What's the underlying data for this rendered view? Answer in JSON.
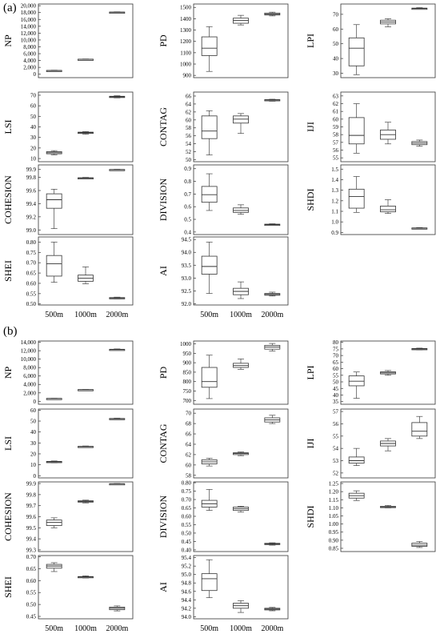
{
  "xcats": [
    "500m",
    "1000m",
    "2000m"
  ],
  "panels": [
    {
      "label": "(a)",
      "charts": [
        {
          "ylabel": "NP",
          "ticks": [
            "0",
            "2,000",
            "4,000",
            "6,000",
            "8,000",
            "10,000",
            "12,000",
            "14,000",
            "16,000",
            "18,000",
            "20,000"
          ],
          "ylim": [
            -1000,
            20500
          ],
          "boxes": [
            {
              "min": 950,
              "q1": 1000,
              "med": 1050,
              "q3": 1120,
              "max": 1180
            },
            {
              "min": 4280,
              "q1": 4330,
              "med": 4360,
              "q3": 4400,
              "max": 4450
            },
            {
              "min": 17950,
              "q1": 18050,
              "med": 18100,
              "q3": 18160,
              "max": 18220
            }
          ]
        },
        {
          "ylabel": "PD",
          "ticks": [
            "900",
            "1000",
            "1100",
            "1200",
            "1300",
            "1400",
            "1500"
          ],
          "ylim": [
            880,
            1530
          ],
          "boxes": [
            {
              "min": 935,
              "q1": 1075,
              "med": 1140,
              "q3": 1240,
              "max": 1330
            },
            {
              "min": 1345,
              "q1": 1360,
              "med": 1385,
              "q3": 1405,
              "max": 1430
            },
            {
              "min": 1425,
              "q1": 1433,
              "med": 1440,
              "q3": 1450,
              "max": 1458
            }
          ]
        },
        {
          "ylabel": "LPI",
          "ticks": [
            "30",
            "40",
            "50",
            "60",
            "70"
          ],
          "ylim": [
            27,
            77
          ],
          "boxes": [
            {
              "min": 29,
              "q1": 35,
              "med": 47,
              "q3": 54,
              "max": 63
            },
            {
              "min": 61.5,
              "q1": 63.5,
              "med": 64.8,
              "q3": 66,
              "max": 67
            },
            {
              "min": 73.5,
              "q1": 73.8,
              "med": 74,
              "q3": 74.2,
              "max": 74.5
            }
          ]
        },
        {
          "ylabel": "LSI",
          "ticks": [
            "10",
            "20",
            "30",
            "40",
            "50",
            "60",
            "70"
          ],
          "ylim": [
            7,
            73
          ],
          "boxes": [
            {
              "min": 13.5,
              "q1": 14.5,
              "med": 15.5,
              "q3": 16.5,
              "max": 17.5
            },
            {
              "min": 33,
              "q1": 33.8,
              "med": 34.5,
              "q3": 35,
              "max": 35.5
            },
            {
              "min": 67.5,
              "q1": 68,
              "med": 68.5,
              "q3": 69,
              "max": 69.5
            }
          ]
        },
        {
          "ylabel": "CONTAG",
          "ticks": [
            "50",
            "52",
            "54",
            "56",
            "58",
            "60",
            "62",
            "64",
            "66"
          ],
          "ylim": [
            49.5,
            67
          ],
          "boxes": [
            {
              "min": 51.2,
              "q1": 55.3,
              "med": 57.2,
              "q3": 61,
              "max": 62.3
            },
            {
              "min": 56.6,
              "q1": 59.2,
              "med": 60.2,
              "q3": 61,
              "max": 61.6
            },
            {
              "min": 64.7,
              "q1": 64.9,
              "med": 65,
              "q3": 65.1,
              "max": 65.2
            }
          ]
        },
        {
          "ylabel": "IJI",
          "ticks": [
            "55",
            "56",
            "57",
            "58",
            "59",
            "60",
            "61",
            "62",
            "63"
          ],
          "ylim": [
            54.5,
            63.5
          ],
          "boxes": [
            {
              "min": 55.6,
              "q1": 56.8,
              "med": 57.9,
              "q3": 60.2,
              "max": 62
            },
            {
              "min": 56.8,
              "q1": 57.4,
              "med": 58,
              "q3": 58.6,
              "max": 59.6
            },
            {
              "min": 56.5,
              "q1": 56.7,
              "med": 56.9,
              "q3": 57.1,
              "max": 57.3
            }
          ]
        },
        {
          "ylabel": "COHESION",
          "ticks": [
            "99.0",
            "99.2",
            "99.4",
            "99.6",
            "99.8",
            "99.9"
          ],
          "yvals": [
            99.0,
            99.2,
            99.4,
            99.6,
            99.8,
            99.92
          ],
          "ylim": [
            98.93,
            99.99
          ],
          "boxes": [
            {
              "min": 99.02,
              "q1": 99.33,
              "med": 99.46,
              "q3": 99.55,
              "max": 99.62
            },
            {
              "min": 99.775,
              "q1": 99.783,
              "med": 99.79,
              "q3": 99.795,
              "max": 99.8
            },
            {
              "min": 99.912,
              "q1": 99.915,
              "med": 99.918,
              "q3": 99.921,
              "max": 99.924
            }
          ]
        },
        {
          "ylabel": "DIVISION",
          "ticks": [
            "0.4",
            "0.5",
            "0.6",
            "0.7",
            "0.8",
            "0.9"
          ],
          "ylim": [
            0.38,
            0.93
          ],
          "boxes": [
            {
              "min": 0.57,
              "q1": 0.635,
              "med": 0.695,
              "q3": 0.76,
              "max": 0.86
            },
            {
              "min": 0.54,
              "q1": 0.555,
              "med": 0.57,
              "q3": 0.59,
              "max": 0.615
            },
            {
              "min": 0.452,
              "q1": 0.456,
              "med": 0.459,
              "q3": 0.462,
              "max": 0.465
            }
          ]
        },
        {
          "ylabel": "SHDI",
          "ticks": [
            "0.9",
            "1.0",
            "1.1",
            "1.2",
            "1.3",
            "1.4",
            "1.5"
          ],
          "ylim": [
            0.88,
            1.54
          ],
          "boxes": [
            {
              "min": 1.09,
              "q1": 1.13,
              "med": 1.24,
              "q3": 1.31,
              "max": 1.43
            },
            {
              "min": 1.08,
              "q1": 1.095,
              "med": 1.115,
              "q3": 1.15,
              "max": 1.21
            },
            {
              "min": 0.935,
              "q1": 0.938,
              "med": 0.94,
              "q3": 0.943,
              "max": 0.946
            }
          ]
        },
        {
          "ylabel": "SHEI",
          "ticks": [
            "0.50",
            "0.55",
            "0.60",
            "0.65",
            "0.70",
            "0.75",
            "0.80"
          ],
          "ylim": [
            0.495,
            0.825
          ],
          "boxes": [
            {
              "min": 0.605,
              "q1": 0.635,
              "med": 0.695,
              "q3": 0.735,
              "max": 0.8
            },
            {
              "min": 0.598,
              "q1": 0.61,
              "med": 0.625,
              "q3": 0.64,
              "max": 0.68
            },
            {
              "min": 0.525,
              "q1": 0.527,
              "med": 0.529,
              "q3": 0.531,
              "max": 0.533
            }
          ]
        },
        {
          "ylabel": "AI",
          "ticks": [
            "92.0",
            "92.5",
            "93.0",
            "93.5",
            "94.0",
            "94.5"
          ],
          "ylim": [
            91.95,
            94.6
          ],
          "boxes": [
            {
              "min": 92.4,
              "q1": 93.15,
              "med": 93.45,
              "q3": 93.85,
              "max": 94.4
            },
            {
              "min": 92.2,
              "q1": 92.35,
              "med": 92.48,
              "q3": 92.6,
              "max": 92.85
            },
            {
              "min": 92.3,
              "q1": 92.33,
              "med": 92.36,
              "q3": 92.4,
              "max": 92.45
            }
          ]
        }
      ]
    },
    {
      "label": "(b)",
      "charts": [
        {
          "ylabel": "NP",
          "ticks": [
            "0",
            "2,000",
            "4,000",
            "6,000",
            "8,000",
            "10,000",
            "12,000",
            "14,000"
          ],
          "ylim": [
            -700,
            14300
          ],
          "boxes": [
            {
              "min": 600,
              "q1": 640,
              "med": 660,
              "q3": 690,
              "max": 720
            },
            {
              "min": 2700,
              "q1": 2740,
              "med": 2760,
              "q3": 2790,
              "max": 2820
            },
            {
              "min": 12100,
              "q1": 12200,
              "med": 12270,
              "q3": 12340,
              "max": 12420
            }
          ]
        },
        {
          "ylabel": "PD",
          "ticks": [
            "700",
            "750",
            "800",
            "850",
            "900",
            "950",
            "1000"
          ],
          "ylim": [
            680,
            1015
          ],
          "boxes": [
            {
              "min": 710,
              "q1": 770,
              "med": 800,
              "q3": 875,
              "max": 940
            },
            {
              "min": 865,
              "q1": 875,
              "med": 885,
              "q3": 897,
              "max": 920
            },
            {
              "min": 962,
              "q1": 972,
              "med": 983,
              "q3": 992,
              "max": 1002
            }
          ]
        },
        {
          "ylabel": "LPI",
          "ticks": [
            "35",
            "40",
            "45",
            "50",
            "55",
            "60",
            "65",
            "70",
            "75",
            "80"
          ],
          "ylim": [
            33,
            81
          ],
          "boxes": [
            {
              "min": 37.5,
              "q1": 47,
              "med": 50.5,
              "q3": 54.5,
              "max": 57.5
            },
            {
              "min": 55,
              "q1": 56,
              "med": 56.8,
              "q3": 57.6,
              "max": 58.6
            },
            {
              "min": 74.3,
              "q1": 74.6,
              "med": 75,
              "q3": 75.3,
              "max": 75.6
            }
          ]
        },
        {
          "ylabel": "LSI",
          "ticks": [
            "0",
            "10",
            "20",
            "30",
            "40",
            "50",
            "60"
          ],
          "ylim": [
            -2,
            61
          ],
          "boxes": [
            {
              "min": 11.8,
              "q1": 12.3,
              "med": 12.7,
              "q3": 13.1,
              "max": 13.5
            },
            {
              "min": 26,
              "q1": 26.3,
              "med": 26.6,
              "q3": 26.9,
              "max": 27.2
            },
            {
              "min": 51.6,
              "q1": 51.9,
              "med": 52.1,
              "q3": 52.4,
              "max": 52.7
            }
          ]
        },
        {
          "ylabel": "CONTAG",
          "ticks": [
            "58",
            "60",
            "62",
            "64",
            "66",
            "68",
            "70"
          ],
          "ylim": [
            57.5,
            70.8
          ],
          "boxes": [
            {
              "min": 59.8,
              "q1": 60.2,
              "med": 60.6,
              "q3": 61,
              "max": 61.3
            },
            {
              "min": 61.8,
              "q1": 62,
              "med": 62.2,
              "q3": 62.35,
              "max": 62.5
            },
            {
              "min": 68,
              "q1": 68.3,
              "med": 68.7,
              "q3": 69.1,
              "max": 69.6
            }
          ]
        },
        {
          "ylabel": "IJI",
          "ticks": [
            "52",
            "53",
            "54",
            "55",
            "56",
            "57"
          ],
          "ylim": [
            51.6,
            57.2
          ],
          "boxes": [
            {
              "min": 52.6,
              "q1": 52.8,
              "med": 53,
              "q3": 53.3,
              "max": 54
            },
            {
              "min": 53.8,
              "q1": 54.2,
              "med": 54.4,
              "q3": 54.6,
              "max": 54.8
            },
            {
              "min": 54.8,
              "q1": 55,
              "med": 55.4,
              "q3": 56.1,
              "max": 56.6
            }
          ]
        },
        {
          "ylabel": "COHESION",
          "ticks": [
            "99.3",
            "99.4",
            "99.5",
            "99.6",
            "99.7",
            "99.8",
            "99.9"
          ],
          "ylim": [
            99.285,
            99.915
          ],
          "boxes": [
            {
              "min": 99.5,
              "q1": 99.52,
              "med": 99.55,
              "q3": 99.57,
              "max": 99.59
            },
            {
              "min": 99.725,
              "q1": 99.732,
              "med": 99.738,
              "q3": 99.744,
              "max": 99.75
            },
            {
              "min": 99.893,
              "q1": 99.895,
              "med": 99.897,
              "q3": 99.899,
              "max": 99.9
            }
          ]
        },
        {
          "ylabel": "DIVISION",
          "ticks": [
            "0.40",
            "0.45",
            "0.50",
            "0.55",
            "0.60",
            "0.65",
            "0.70",
            "0.75",
            "0.80"
          ],
          "ylim": [
            0.39,
            0.805
          ],
          "boxes": [
            {
              "min": 0.635,
              "q1": 0.655,
              "med": 0.675,
              "q3": 0.695,
              "max": 0.76
            },
            {
              "min": 0.625,
              "q1": 0.635,
              "med": 0.645,
              "q3": 0.655,
              "max": 0.66
            },
            {
              "min": 0.428,
              "q1": 0.432,
              "med": 0.435,
              "q3": 0.439,
              "max": 0.442
            }
          ]
        },
        {
          "ylabel": "SHDI",
          "ticks": [
            "0.85",
            "0.90",
            "0.95",
            "1.00",
            "1.05",
            "1.10",
            "1.15",
            "1.20",
            "1.25"
          ],
          "ylim": [
            0.83,
            1.26
          ],
          "boxes": [
            {
              "min": 1.145,
              "q1": 1.16,
              "med": 1.175,
              "q3": 1.19,
              "max": 1.205
            },
            {
              "min": 1.1,
              "q1": 1.103,
              "med": 1.106,
              "q3": 1.109,
              "max": 1.115
            },
            {
              "min": 0.855,
              "q1": 0.862,
              "med": 0.87,
              "q3": 0.882,
              "max": 0.892
            }
          ]
        },
        {
          "ylabel": "SHEI",
          "ticks": [
            "0.45",
            "0.50",
            "0.55",
            "0.60",
            "0.65",
            "0.70"
          ],
          "ylim": [
            0.44,
            0.705
          ],
          "boxes": [
            {
              "min": 0.638,
              "q1": 0.652,
              "med": 0.661,
              "q3": 0.668,
              "max": 0.675
            },
            {
              "min": 0.611,
              "q1": 0.613,
              "med": 0.615,
              "q3": 0.617,
              "max": 0.62
            },
            {
              "min": 0.473,
              "q1": 0.478,
              "med": 0.484,
              "q3": 0.489,
              "max": 0.494
            }
          ]
        },
        {
          "ylabel": "AI",
          "ticks": [
            "94.0",
            "94.2",
            "94.4",
            "94.6",
            "94.8",
            "95.0",
            "95.2",
            "95.4"
          ],
          "ylim": [
            93.95,
            95.45
          ],
          "boxes": [
            {
              "min": 94.45,
              "q1": 94.62,
              "med": 94.9,
              "q3": 95.02,
              "max": 95.35
            },
            {
              "min": 94.1,
              "q1": 94.2,
              "med": 94.26,
              "q3": 94.32,
              "max": 94.38
            },
            {
              "min": 94.14,
              "q1": 94.16,
              "med": 94.18,
              "q3": 94.2,
              "max": 94.22
            }
          ]
        }
      ]
    }
  ],
  "chart_data": {
    "type": "box",
    "description": "Two sets (a, b) of 11 box plots each of landscape metrics at three scales",
    "categories": [
      "500m",
      "1000m",
      "2000m"
    ],
    "metrics": [
      "NP",
      "PD",
      "LPI",
      "LSI",
      "CONTAG",
      "IJI",
      "COHESION",
      "DIVISION",
      "SHDI",
      "SHEI",
      "AI"
    ]
  }
}
